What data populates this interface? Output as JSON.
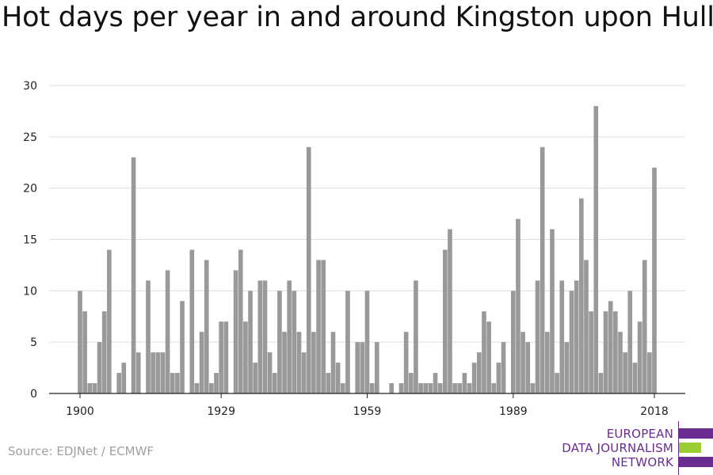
{
  "title": "Hot days per year in and around Kingston upon Hull",
  "source": "Source: EDJNet / ECMWF",
  "logo": {
    "lines": [
      "EUROPEAN",
      "DATA JOURNALISM",
      "NETWORK"
    ],
    "colors": {
      "purple": "#6b2c91",
      "green": "#9acd32"
    }
  },
  "chart_data": {
    "type": "bar",
    "title": "Hot days per year in and around Kingston upon Hull",
    "xlabel": "",
    "ylabel": "",
    "x_tick_labels": [
      "1900",
      "1929",
      "1959",
      "1989",
      "2018"
    ],
    "y_ticks": [
      0,
      5,
      10,
      15,
      20,
      25,
      30
    ],
    "ylim": [
      0,
      30
    ],
    "grid": true,
    "bar_color": "#999999",
    "x": [
      1900,
      1901,
      1902,
      1903,
      1904,
      1905,
      1906,
      1907,
      1908,
      1909,
      1910,
      1911,
      1912,
      1913,
      1914,
      1915,
      1916,
      1917,
      1918,
      1919,
      1920,
      1921,
      1922,
      1923,
      1924,
      1925,
      1926,
      1927,
      1928,
      1929,
      1930,
      1931,
      1932,
      1933,
      1934,
      1935,
      1936,
      1937,
      1938,
      1939,
      1940,
      1941,
      1942,
      1943,
      1944,
      1945,
      1946,
      1947,
      1948,
      1949,
      1950,
      1951,
      1952,
      1953,
      1954,
      1955,
      1956,
      1957,
      1958,
      1959,
      1960,
      1961,
      1962,
      1963,
      1964,
      1965,
      1966,
      1967,
      1968,
      1969,
      1970,
      1971,
      1972,
      1973,
      1974,
      1975,
      1976,
      1977,
      1978,
      1979,
      1980,
      1981,
      1982,
      1983,
      1984,
      1985,
      1986,
      1987,
      1988,
      1989,
      1990,
      1991,
      1992,
      1993,
      1994,
      1995,
      1996,
      1997,
      1998,
      1999,
      2000,
      2001,
      2002,
      2003,
      2004,
      2005,
      2006,
      2007,
      2008,
      2009,
      2010,
      2011,
      2012,
      2013,
      2014,
      2015,
      2016,
      2017,
      2018
    ],
    "values": [
      10,
      8,
      1,
      1,
      5,
      8,
      14,
      0,
      2,
      3,
      0,
      23,
      4,
      0,
      11,
      4,
      4,
      4,
      12,
      2,
      2,
      9,
      0,
      14,
      1,
      6,
      13,
      1,
      2,
      7,
      7,
      0,
      12,
      14,
      7,
      10,
      3,
      11,
      11,
      4,
      2,
      10,
      6,
      11,
      10,
      6,
      4,
      24,
      6,
      13,
      13,
      2,
      6,
      3,
      1,
      10,
      0,
      5,
      5,
      10,
      1,
      5,
      0,
      0,
      1,
      0,
      1,
      6,
      2,
      11,
      1,
      1,
      1,
      2,
      1,
      14,
      16,
      1,
      1,
      2,
      1,
      3,
      4,
      8,
      7,
      1,
      3,
      5,
      0,
      10,
      17,
      6,
      5,
      1,
      11,
      24,
      6,
      16,
      2,
      11,
      5,
      10,
      11,
      19,
      13,
      8,
      28,
      2,
      8,
      9,
      8,
      6,
      4,
      10,
      3,
      7,
      13,
      4,
      22
    ]
  }
}
